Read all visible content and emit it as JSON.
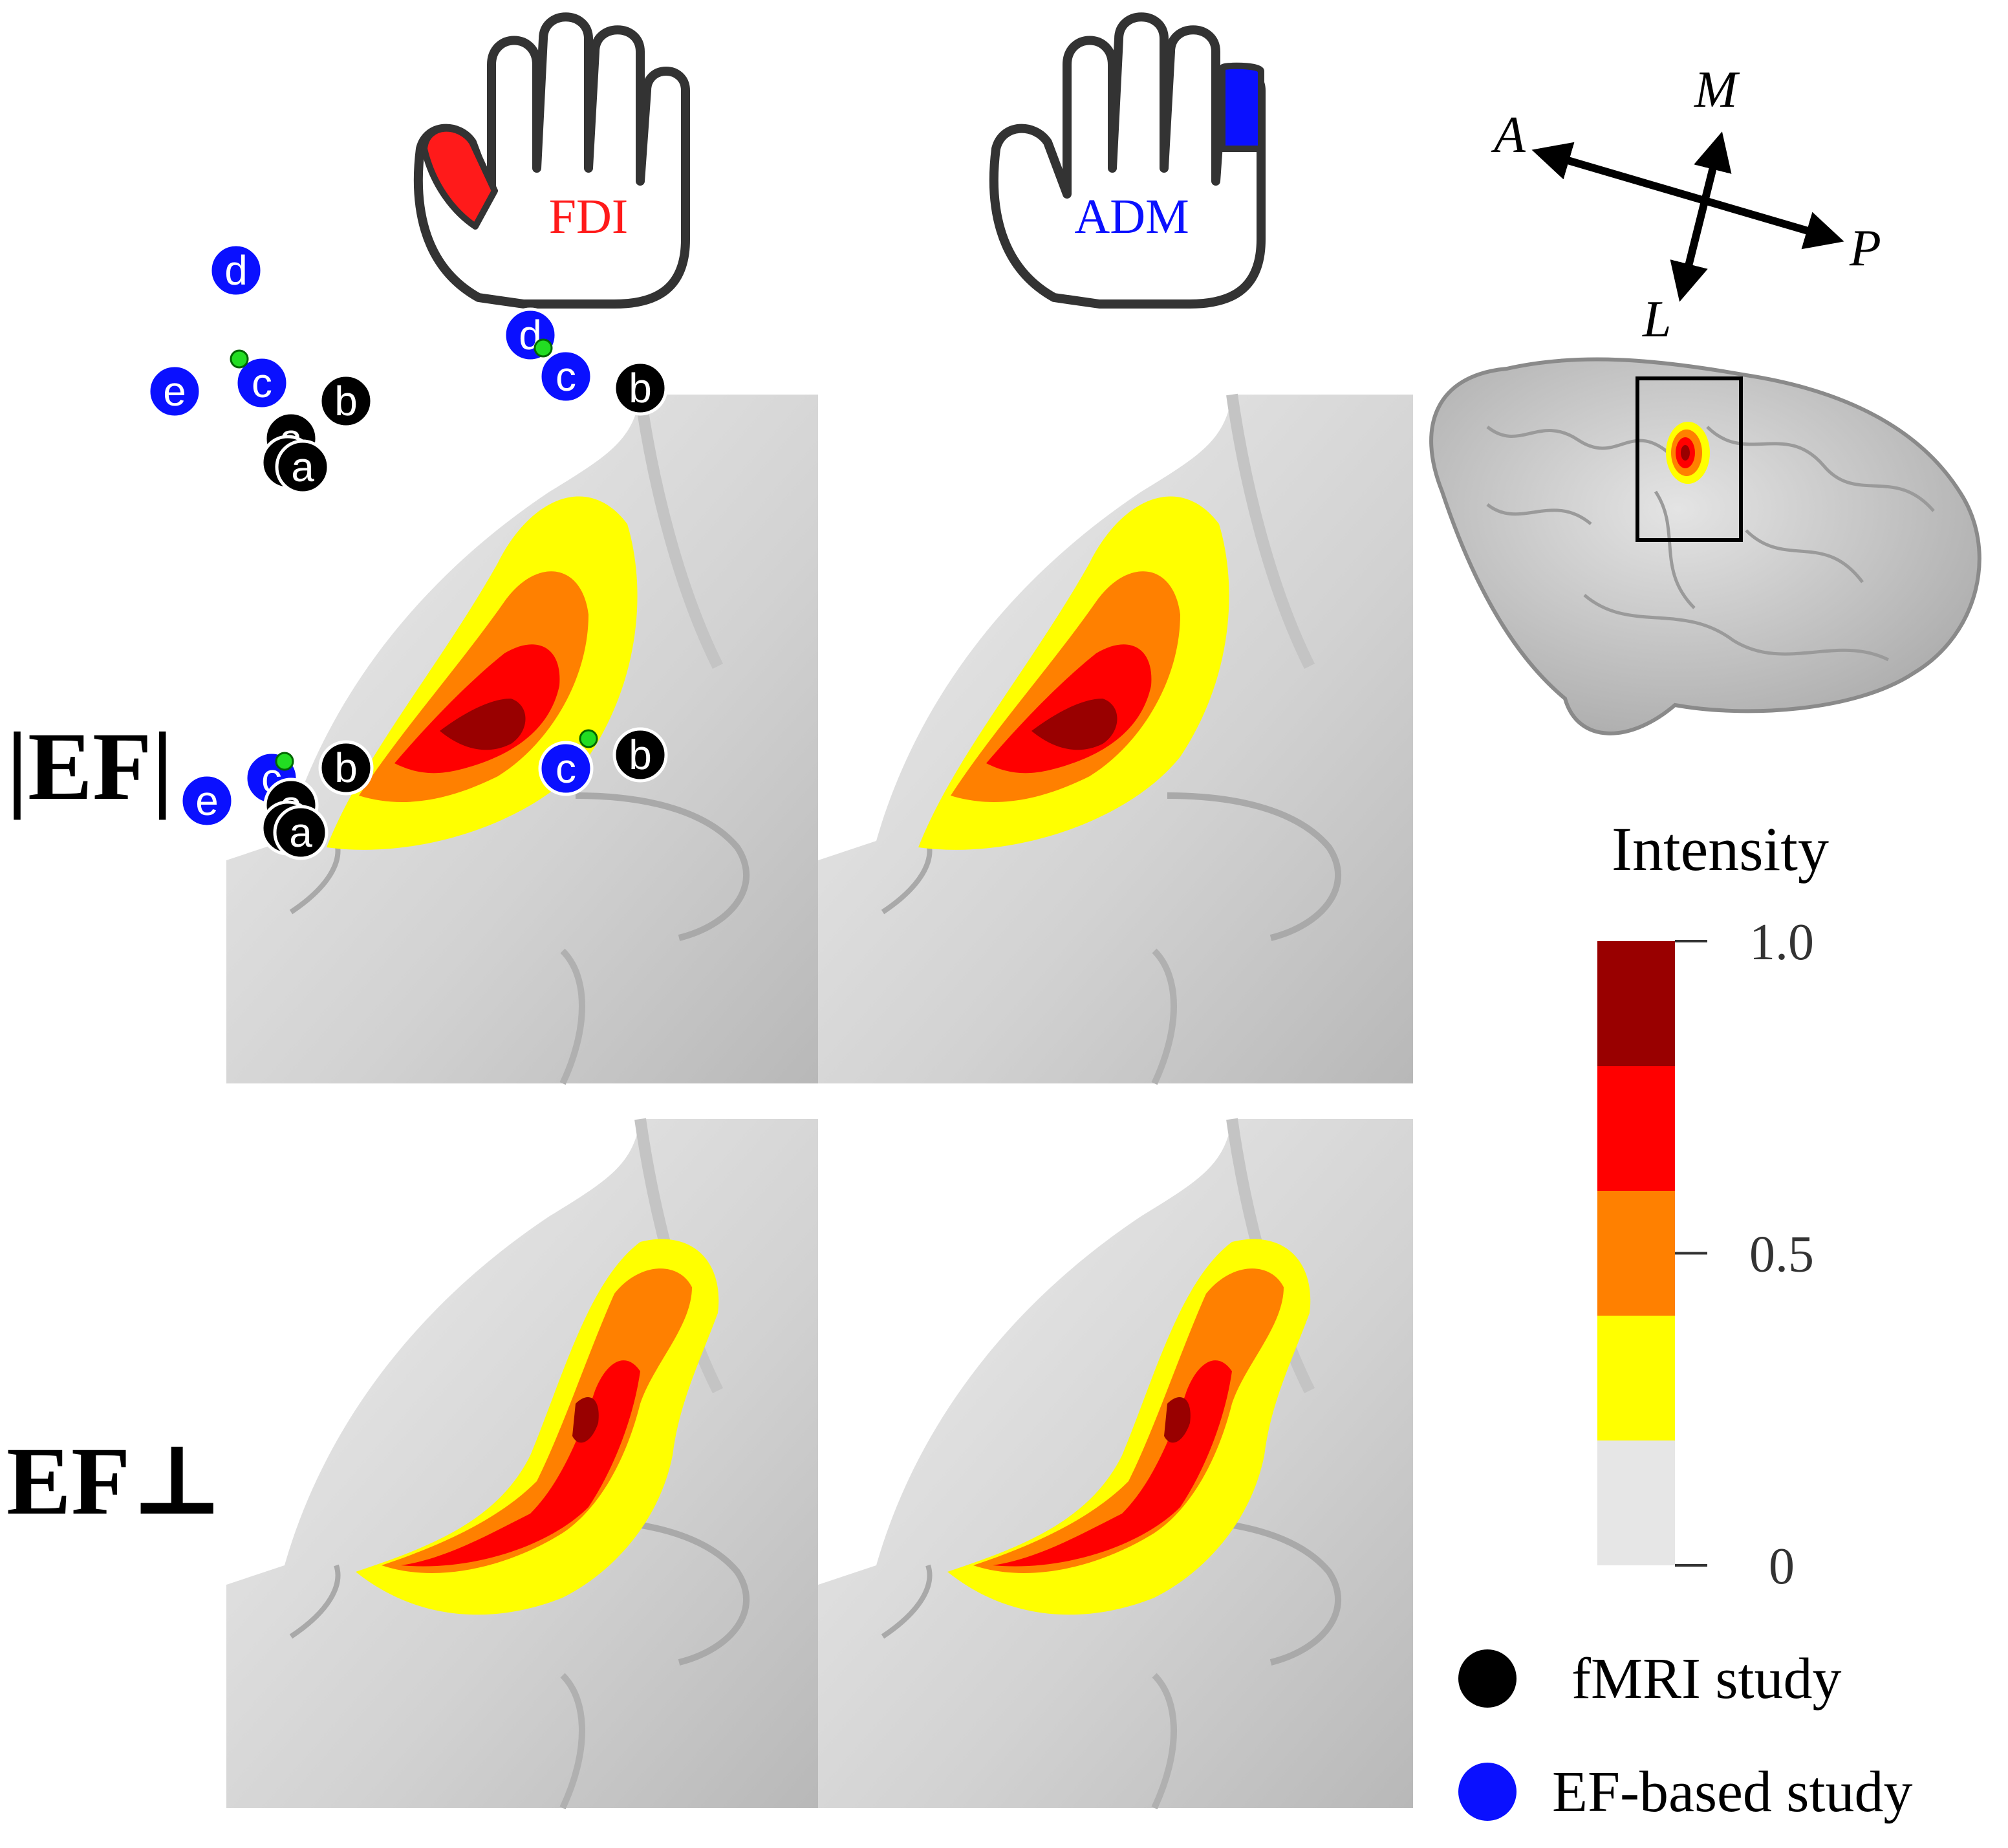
{
  "muscles": [
    {
      "label": "FDI",
      "color": "#ff1a1a"
    },
    {
      "label": "ADM",
      "color": "#0a10ff"
    }
  ],
  "rows": [
    {
      "label": "|EF|"
    },
    {
      "label": "EF⊥"
    }
  ],
  "orientation": {
    "anterior": "A",
    "posterior": "P",
    "medial": "M",
    "lateral": "L"
  },
  "colorbar": {
    "title": "Intensity",
    "tick_labels": [
      "1.0",
      "0.5",
      "0"
    ],
    "levels": [
      {
        "from": 0.8,
        "to": 1.0,
        "color": "#990000"
      },
      {
        "from": 0.6,
        "to": 0.8,
        "color": "#ff0000"
      },
      {
        "from": 0.4,
        "to": 0.6,
        "color": "#ff8000"
      },
      {
        "from": 0.2,
        "to": 0.4,
        "color": "#ffff00"
      },
      {
        "from": 0.0,
        "to": 0.2,
        "color": "#e6e6e6"
      }
    ]
  },
  "legend": [
    {
      "label": "fMRI study",
      "color": "#000000"
    },
    {
      "label": "EF-based study",
      "color": "#0a10ff"
    }
  ],
  "panels": [
    {
      "id": "ef-magnitude-fdi",
      "markers": [
        {
          "label": "d",
          "type": "ef"
        },
        {
          "label": "c",
          "type": "ef"
        },
        {
          "label": "e",
          "type": "ef"
        },
        {
          "label": "b",
          "type": "fmri"
        },
        {
          "label": "a",
          "type": "fmri"
        },
        {
          "label": "a",
          "type": "fmri"
        },
        {
          "label": "a",
          "type": "fmri"
        }
      ]
    },
    {
      "id": "ef-magnitude-adm",
      "markers": [
        {
          "label": "d",
          "type": "ef"
        },
        {
          "label": "c",
          "type": "ef"
        },
        {
          "label": "b",
          "type": "fmri"
        }
      ]
    },
    {
      "id": "ef-normal-fdi",
      "markers": [
        {
          "label": "c",
          "type": "ef"
        },
        {
          "label": "e",
          "type": "ef"
        },
        {
          "label": "b",
          "type": "fmri"
        },
        {
          "label": "a",
          "type": "fmri"
        },
        {
          "label": "a",
          "type": "fmri"
        },
        {
          "label": "a",
          "type": "fmri"
        }
      ]
    },
    {
      "id": "ef-normal-adm",
      "markers": [
        {
          "label": "c",
          "type": "ef"
        },
        {
          "label": "b",
          "type": "fmri"
        }
      ]
    }
  ]
}
